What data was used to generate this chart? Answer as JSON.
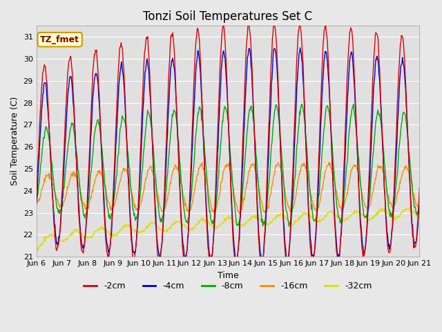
{
  "title": "Tonzi Soil Temperatures Set C",
  "xlabel": "Time",
  "ylabel": "Soil Temperature (C)",
  "ylim": [
    21.0,
    31.5
  ],
  "yticks": [
    21.0,
    22.0,
    23.0,
    24.0,
    25.0,
    26.0,
    27.0,
    28.0,
    29.0,
    30.0,
    31.0
  ],
  "colors": {
    "-2cm": "#dd0000",
    "-4cm": "#0000cc",
    "-8cm": "#00aa00",
    "-16cm": "#ff8800",
    "-32cm": "#dddd00"
  },
  "legend_labels": [
    "-2cm",
    "-4cm",
    "-8cm",
    "-16cm",
    "-32cm"
  ],
  "annotation_text": "TZ_fmet",
  "annotation_box_color": "#ffffcc",
  "annotation_box_edge": "#cc9900",
  "fig_bg_color": "#e8e8e8",
  "plot_bg_color": "#e0e0e0",
  "grid_color": "#ffffff",
  "title_fontsize": 12,
  "label_fontsize": 9,
  "tick_fontsize": 8
}
